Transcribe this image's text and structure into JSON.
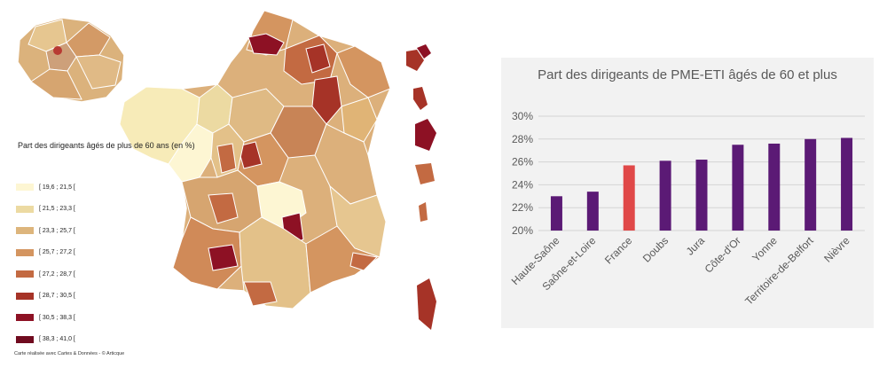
{
  "map": {
    "legend_title": "Part des dirigeants âgés de plus de 60 ans (en %)",
    "legend": [
      {
        "label": "[ 19,6 ; 21,5 [",
        "color": "#fdf6d3"
      },
      {
        "label": "[ 21,5 ; 23,3 [",
        "color": "#ecdaa2"
      },
      {
        "label": "[ 23,3 ; 25,7 [",
        "color": "#ddb57c"
      },
      {
        "label": "[ 25,7 ; 27,2 [",
        "color": "#d49560"
      },
      {
        "label": "[ 27,2 ; 28,7 [",
        "color": "#c36a42"
      },
      {
        "label": "[ 28,7 ; 30,5 [",
        "color": "#a63327"
      },
      {
        "label": "[ 30,5 ; 38,3 [",
        "color": "#8d1124"
      },
      {
        "label": "[ 38,3 ; 41,0 [",
        "color": "#700b1f"
      }
    ],
    "credit": "Carte réalisée avec Cartes & Données - © Articque"
  },
  "chart_data": {
    "type": "bar",
    "title": "Part des dirigeants de PME-ETI âgés de 60 et plus",
    "categories": [
      "Haute-Saône",
      "Saône-et-Loire",
      "France",
      "Doubs",
      "Jura",
      "Côte-d'Or",
      "Yonne",
      "Territoire-de-Belfort",
      "Nièvre"
    ],
    "values": [
      23.0,
      23.4,
      25.7,
      26.1,
      26.2,
      27.5,
      27.6,
      28.0,
      28.1
    ],
    "colors": [
      "#5b1a75",
      "#5b1a75",
      "#e04848",
      "#5b1a75",
      "#5b1a75",
      "#5b1a75",
      "#5b1a75",
      "#5b1a75",
      "#5b1a75"
    ],
    "yticks": [
      "20%",
      "22%",
      "24%",
      "26%",
      "28%",
      "30%"
    ],
    "ylim": [
      20,
      30
    ],
    "grid": true,
    "xlabel": "",
    "ylabel": ""
  }
}
